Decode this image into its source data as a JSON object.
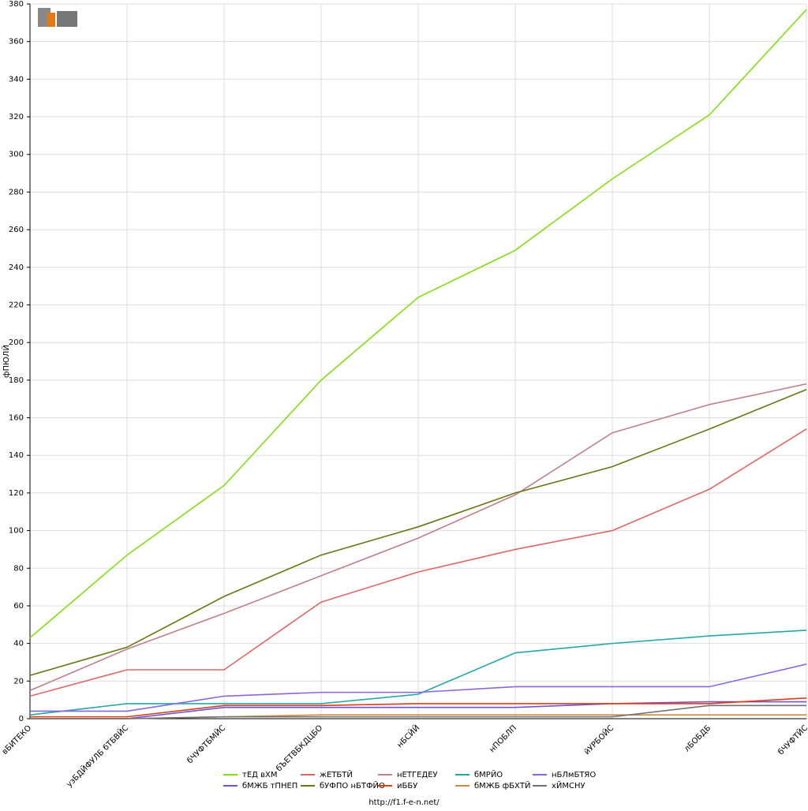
{
  "chart_data": {
    "type": "line",
    "y_label": "фПЮЛЙ",
    "footer": "http://f1.f-e-n.net/",
    "categories": [
      "вБИТЕКО",
      "узБДЙФУЛБ бТБВЙС",
      "бЧУФТБМЙС",
      "бЪЕТВБКДЦБО",
      "нБСЙЙ",
      "нПОБЛП",
      "йУРБОЙС",
      "лБОБДБ",
      "бЧУФТЙС"
    ],
    "ylim": [
      0,
      380
    ],
    "yticks": [
      0,
      20,
      40,
      60,
      80,
      100,
      120,
      140,
      160,
      180,
      200,
      220,
      240,
      260,
      280,
      300,
      320,
      340,
      360,
      380
    ],
    "grid": true,
    "series": [
      {
        "name": "тЕД вХМ",
        "color": "#80e010",
        "values": [
          43,
          87,
          124,
          180,
          224,
          249,
          287,
          321,
          377
        ]
      },
      {
        "name": "жЕТБТЙ",
        "color": "#e06666",
        "values": [
          12,
          26,
          26,
          62,
          78,
          90,
          100,
          122,
          154
        ]
      },
      {
        "name": "нЕТГЕДЕУ",
        "color": "#c08088",
        "values": [
          15,
          37,
          56,
          76,
          96,
          119,
          152,
          167,
          178
        ]
      },
      {
        "name": "бМРЙО",
        "color": "#20a8a8",
        "values": [
          2,
          8,
          8,
          8,
          13,
          35,
          40,
          44,
          47
        ]
      },
      {
        "name": "нБЛмБТЯО",
        "color": "#8866e0",
        "values": [
          4,
          4,
          12,
          14,
          14,
          17,
          17,
          17,
          29
        ]
      },
      {
        "name": "бМЖБ тПНЕП",
        "color": "#6655dd",
        "values": [
          0,
          0,
          6,
          6,
          6,
          6,
          8,
          9,
          9
        ]
      },
      {
        "name": "бУФПО нБТФЙО",
        "color": "#667711",
        "values": [
          23,
          38,
          65,
          87,
          102,
          120,
          134,
          154,
          175
        ]
      },
      {
        "name": "иББУ",
        "color": "#e03a10",
        "values": [
          1,
          1,
          7,
          7,
          8,
          8,
          8,
          8,
          11
        ]
      },
      {
        "name": "бМЖБ фБХТЙ",
        "color": "#d08840",
        "values": [
          0,
          0,
          1,
          2,
          2,
          2,
          2,
          2,
          2
        ]
      },
      {
        "name": "хЙМСНУ",
        "color": "#707070",
        "values": [
          0,
          0,
          1,
          1,
          1,
          1,
          1,
          7,
          7
        ]
      }
    ]
  }
}
